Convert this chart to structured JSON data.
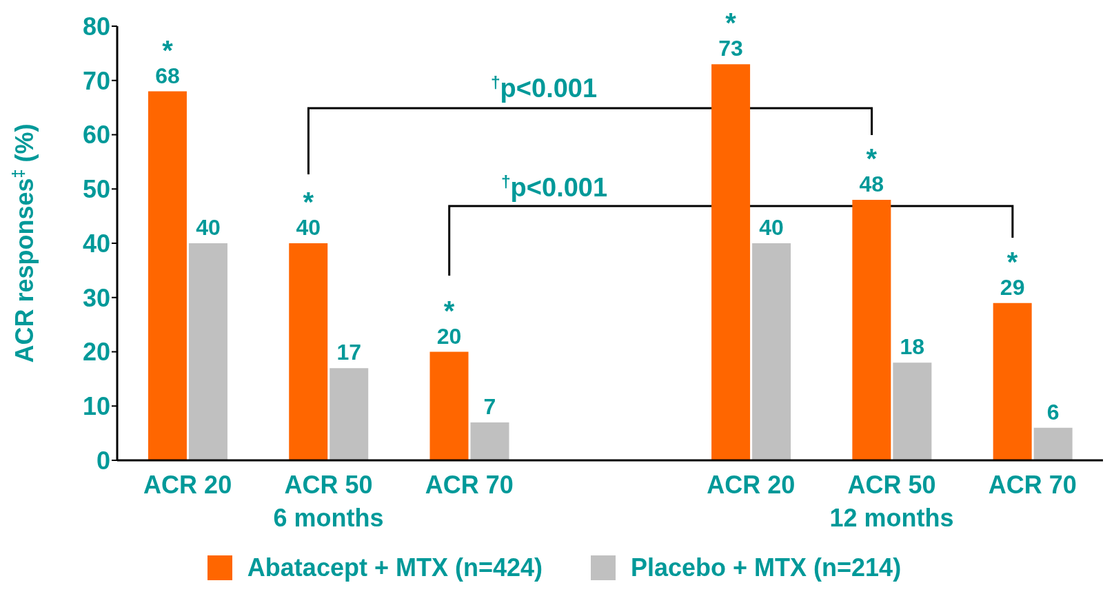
{
  "chart_data": {
    "type": "bar",
    "ylabel": "ACR responses$^{‡}$ (%)",
    "categories": [
      "ACR 20",
      "ACR 50",
      "ACR 70",
      null,
      "ACR 20",
      "ACR 50",
      "ACR 70"
    ],
    "series": [
      {
        "name": "Abatacept + MTX (n=424)",
        "color": "#ff6600",
        "values": [
          68,
          40,
          20,
          null,
          73,
          48,
          29
        ],
        "value_labels": [
          "*\n68",
          "*\n40",
          "*\n20",
          null,
          "*\n73",
          "*\n48",
          "*\n29"
        ]
      },
      {
        "name": "Placebo + MTX (n=214)",
        "color": "#c0c0c0",
        "values": [
          40,
          17,
          7,
          null,
          40,
          18,
          6
        ],
        "value_labels": [
          "40",
          "17",
          "7",
          null,
          "40",
          "18",
          "6"
        ]
      }
    ],
    "ylim": [
      0,
      80
    ],
    "yticks": [
      0,
      10,
      20,
      30,
      40,
      50,
      60,
      70,
      80
    ],
    "grid": false,
    "legend": "bottom",
    "annotations": [
      "$^{†}$p<0.001",
      "$^{†}$p<0.001",
      "6 months",
      "12 months"
    ]
  }
}
